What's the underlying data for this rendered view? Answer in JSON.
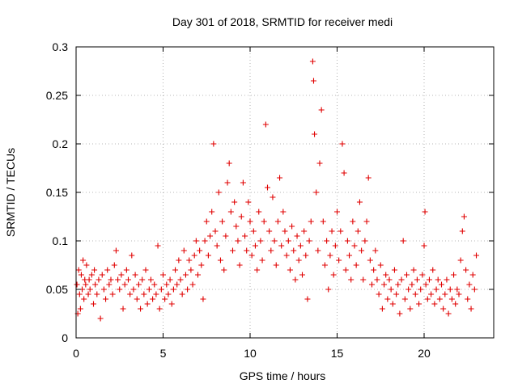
{
  "chart_data": {
    "type": "scatter",
    "title": "Day 301 of 2018, SRMTID for receiver medi",
    "xlabel": "GPS time / hours",
    "ylabel": "SRMTID / TECUs",
    "xlim": [
      0,
      24
    ],
    "ylim": [
      0,
      0.3
    ],
    "x_ticks": [
      0,
      5,
      10,
      15,
      20
    ],
    "x_tick_labels": [
      "0",
      "5",
      "10",
      "15",
      "20"
    ],
    "y_ticks": [
      0,
      0.05,
      0.1,
      0.15,
      0.2,
      0.25,
      0.3
    ],
    "y_tick_labels": [
      "0",
      "0.05",
      "0.1",
      "0.15",
      "0.2",
      "0.25",
      "0.3"
    ],
    "grid": true,
    "marker": "+",
    "color": "#e00000",
    "series": [
      {
        "name": "SRMTID",
        "points": [
          [
            0.05,
            0.055
          ],
          [
            0.1,
            0.025
          ],
          [
            0.15,
            0.07
          ],
          [
            0.2,
            0.045
          ],
          [
            0.25,
            0.03
          ],
          [
            0.3,
            0.065
          ],
          [
            0.35,
            0.05
          ],
          [
            0.4,
            0.08
          ],
          [
            0.45,
            0.04
          ],
          [
            0.5,
            0.06
          ],
          [
            0.55,
            0.055
          ],
          [
            0.6,
            0.075
          ],
          [
            0.7,
            0.045
          ],
          [
            0.75,
            0.06
          ],
          [
            0.8,
            0.05
          ],
          [
            0.9,
            0.065
          ],
          [
            1.0,
            0.035
          ],
          [
            1.05,
            0.07
          ],
          [
            1.1,
            0.055
          ],
          [
            1.2,
            0.045
          ],
          [
            1.3,
            0.06
          ],
          [
            1.4,
            0.02
          ],
          [
            1.5,
            0.065
          ],
          [
            1.6,
            0.05
          ],
          [
            1.7,
            0.04
          ],
          [
            1.8,
            0.07
          ],
          [
            1.9,
            0.055
          ],
          [
            2.0,
            0.06
          ],
          [
            2.1,
            0.045
          ],
          [
            2.2,
            0.075
          ],
          [
            2.3,
            0.09
          ],
          [
            2.4,
            0.06
          ],
          [
            2.5,
            0.05
          ],
          [
            2.6,
            0.065
          ],
          [
            2.7,
            0.03
          ],
          [
            2.8,
            0.055
          ],
          [
            2.9,
            0.07
          ],
          [
            3.0,
            0.06
          ],
          [
            3.1,
            0.045
          ],
          [
            3.2,
            0.085
          ],
          [
            3.3,
            0.05
          ],
          [
            3.4,
            0.065
          ],
          [
            3.5,
            0.04
          ],
          [
            3.6,
            0.055
          ],
          [
            3.7,
            0.03
          ],
          [
            3.8,
            0.06
          ],
          [
            3.9,
            0.045
          ],
          [
            4.0,
            0.07
          ],
          [
            4.1,
            0.035
          ],
          [
            4.2,
            0.05
          ],
          [
            4.3,
            0.06
          ],
          [
            4.4,
            0.04
          ],
          [
            4.5,
            0.055
          ],
          [
            4.6,
            0.045
          ],
          [
            4.7,
            0.095
          ],
          [
            4.8,
            0.03
          ],
          [
            4.9,
            0.05
          ],
          [
            5.0,
            0.065
          ],
          [
            5.1,
            0.04
          ],
          [
            5.2,
            0.055
          ],
          [
            5.3,
            0.045
          ],
          [
            5.4,
            0.06
          ],
          [
            5.5,
            0.035
          ],
          [
            5.6,
            0.05
          ],
          [
            5.7,
            0.07
          ],
          [
            5.8,
            0.055
          ],
          [
            5.9,
            0.08
          ],
          [
            6.0,
            0.06
          ],
          [
            6.1,
            0.045
          ],
          [
            6.2,
            0.09
          ],
          [
            6.3,
            0.065
          ],
          [
            6.4,
            0.05
          ],
          [
            6.5,
            0.08
          ],
          [
            6.6,
            0.07
          ],
          [
            6.7,
            0.055
          ],
          [
            6.8,
            0.085
          ],
          [
            6.9,
            0.1
          ],
          [
            7.0,
            0.065
          ],
          [
            7.1,
            0.09
          ],
          [
            7.2,
            0.075
          ],
          [
            7.3,
            0.04
          ],
          [
            7.4,
            0.1
          ],
          [
            7.5,
            0.12
          ],
          [
            7.6,
            0.085
          ],
          [
            7.7,
            0.105
          ],
          [
            7.8,
            0.13
          ],
          [
            7.9,
            0.2
          ],
          [
            8.0,
            0.11
          ],
          [
            8.1,
            0.095
          ],
          [
            8.2,
            0.15
          ],
          [
            8.3,
            0.08
          ],
          [
            8.4,
            0.12
          ],
          [
            8.5,
            0.07
          ],
          [
            8.6,
            0.105
          ],
          [
            8.7,
            0.16
          ],
          [
            8.8,
            0.18
          ],
          [
            8.9,
            0.13
          ],
          [
            9.0,
            0.09
          ],
          [
            9.1,
            0.14
          ],
          [
            9.2,
            0.115
          ],
          [
            9.3,
            0.1
          ],
          [
            9.4,
            0.075
          ],
          [
            9.5,
            0.125
          ],
          [
            9.6,
            0.16
          ],
          [
            9.7,
            0.105
          ],
          [
            9.8,
            0.09
          ],
          [
            9.9,
            0.14
          ],
          [
            10.0,
            0.12
          ],
          [
            10.1,
            0.085
          ],
          [
            10.2,
            0.11
          ],
          [
            10.3,
            0.095
          ],
          [
            10.4,
            0.07
          ],
          [
            10.5,
            0.13
          ],
          [
            10.6,
            0.1
          ],
          [
            10.7,
            0.08
          ],
          [
            10.8,
            0.12
          ],
          [
            10.9,
            0.22
          ],
          [
            11.0,
            0.155
          ],
          [
            11.1,
            0.11
          ],
          [
            11.2,
            0.09
          ],
          [
            11.3,
            0.145
          ],
          [
            11.4,
            0.1
          ],
          [
            11.5,
            0.075
          ],
          [
            11.6,
            0.12
          ],
          [
            11.7,
            0.165
          ],
          [
            11.8,
            0.095
          ],
          [
            11.9,
            0.13
          ],
          [
            12.0,
            0.11
          ],
          [
            12.1,
            0.085
          ],
          [
            12.2,
            0.1
          ],
          [
            12.3,
            0.07
          ],
          [
            12.4,
            0.115
          ],
          [
            12.5,
            0.09
          ],
          [
            12.6,
            0.06
          ],
          [
            12.7,
            0.105
          ],
          [
            12.8,
            0.08
          ],
          [
            12.9,
            0.095
          ],
          [
            13.0,
            0.065
          ],
          [
            13.1,
            0.11
          ],
          [
            13.2,
            0.085
          ],
          [
            13.3,
            0.04
          ],
          [
            13.4,
            0.1
          ],
          [
            13.5,
            0.12
          ],
          [
            13.6,
            0.285
          ],
          [
            13.65,
            0.265
          ],
          [
            13.7,
            0.21
          ],
          [
            13.8,
            0.15
          ],
          [
            13.9,
            0.09
          ],
          [
            14.0,
            0.18
          ],
          [
            14.1,
            0.235
          ],
          [
            14.2,
            0.12
          ],
          [
            14.3,
            0.075
          ],
          [
            14.4,
            0.1
          ],
          [
            14.5,
            0.05
          ],
          [
            14.6,
            0.085
          ],
          [
            14.7,
            0.11
          ],
          [
            14.8,
            0.065
          ],
          [
            14.9,
            0.095
          ],
          [
            15.0,
            0.13
          ],
          [
            15.1,
            0.08
          ],
          [
            15.2,
            0.11
          ],
          [
            15.3,
            0.2
          ],
          [
            15.4,
            0.17
          ],
          [
            15.5,
            0.07
          ],
          [
            15.6,
            0.1
          ],
          [
            15.7,
            0.085
          ],
          [
            15.8,
            0.06
          ],
          [
            15.9,
            0.12
          ],
          [
            16.0,
            0.095
          ],
          [
            16.1,
            0.075
          ],
          [
            16.2,
            0.11
          ],
          [
            16.3,
            0.14
          ],
          [
            16.4,
            0.09
          ],
          [
            16.5,
            0.06
          ],
          [
            16.6,
            0.1
          ],
          [
            16.7,
            0.12
          ],
          [
            16.8,
            0.165
          ],
          [
            16.9,
            0.08
          ],
          [
            17.0,
            0.055
          ],
          [
            17.1,
            0.07
          ],
          [
            17.2,
            0.09
          ],
          [
            17.3,
            0.06
          ],
          [
            17.4,
            0.045
          ],
          [
            17.5,
            0.075
          ],
          [
            17.6,
            0.03
          ],
          [
            17.7,
            0.055
          ],
          [
            17.8,
            0.065
          ],
          [
            17.9,
            0.04
          ],
          [
            18.0,
            0.06
          ],
          [
            18.1,
            0.05
          ],
          [
            18.2,
            0.035
          ],
          [
            18.3,
            0.07
          ],
          [
            18.4,
            0.045
          ],
          [
            18.5,
            0.055
          ],
          [
            18.6,
            0.025
          ],
          [
            18.7,
            0.06
          ],
          [
            18.8,
            0.1
          ],
          [
            18.9,
            0.04
          ],
          [
            19.0,
            0.065
          ],
          [
            19.1,
            0.05
          ],
          [
            19.2,
            0.03
          ],
          [
            19.3,
            0.055
          ],
          [
            19.4,
            0.07
          ],
          [
            19.5,
            0.045
          ],
          [
            19.6,
            0.06
          ],
          [
            19.7,
            0.035
          ],
          [
            19.8,
            0.05
          ],
          [
            19.9,
            0.065
          ],
          [
            20.0,
            0.095
          ],
          [
            20.05,
            0.13
          ],
          [
            20.1,
            0.055
          ],
          [
            20.2,
            0.04
          ],
          [
            20.3,
            0.06
          ],
          [
            20.4,
            0.045
          ],
          [
            20.5,
            0.07
          ],
          [
            20.6,
            0.035
          ],
          [
            20.7,
            0.05
          ],
          [
            20.8,
            0.06
          ],
          [
            20.9,
            0.04
          ],
          [
            21.0,
            0.055
          ],
          [
            21.1,
            0.03
          ],
          [
            21.2,
            0.045
          ],
          [
            21.3,
            0.06
          ],
          [
            21.4,
            0.025
          ],
          [
            21.5,
            0.05
          ],
          [
            21.6,
            0.04
          ],
          [
            21.7,
            0.065
          ],
          [
            21.8,
            0.035
          ],
          [
            21.9,
            0.05
          ],
          [
            22.0,
            0.045
          ],
          [
            22.1,
            0.08
          ],
          [
            22.2,
            0.11
          ],
          [
            22.3,
            0.125
          ],
          [
            22.4,
            0.07
          ],
          [
            22.5,
            0.04
          ],
          [
            22.6,
            0.055
          ],
          [
            22.7,
            0.03
          ],
          [
            22.8,
            0.065
          ],
          [
            22.9,
            0.05
          ],
          [
            23.0,
            0.085
          ]
        ]
      }
    ]
  }
}
